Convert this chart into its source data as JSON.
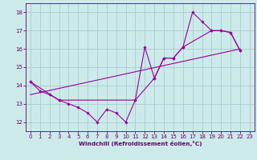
{
  "main_x": [
    0,
    1,
    2,
    3,
    4,
    5,
    6,
    7,
    8,
    9,
    10,
    11,
    12,
    13,
    14,
    15,
    16,
    17,
    18,
    19,
    20,
    21,
    22
  ],
  "main_y": [
    14.2,
    13.7,
    13.5,
    13.2,
    13.0,
    12.8,
    12.5,
    12.0,
    12.7,
    12.5,
    12.0,
    13.2,
    16.1,
    14.4,
    15.5,
    15.5,
    16.1,
    18.0,
    17.5,
    17.0,
    17.0,
    16.9,
    15.9
  ],
  "env_x": [
    0,
    3,
    11,
    13,
    14,
    15,
    16,
    19,
    20,
    21,
    22
  ],
  "env_y": [
    14.2,
    13.2,
    13.2,
    14.4,
    15.5,
    15.5,
    16.1,
    17.0,
    17.0,
    16.9,
    15.9
  ],
  "trend_x": [
    0,
    22
  ],
  "trend_y": [
    13.5,
    16.0
  ],
  "line_color": "#990099",
  "bg_color": "#cceaea",
  "grid_color": "#aacccc",
  "xlabel": "Windchill (Refroidissement éolien,°C)",
  "xlabel_color": "#660066",
  "tick_color": "#660066",
  "xlim": [
    -0.5,
    23.5
  ],
  "ylim": [
    11.5,
    18.5
  ],
  "yticks": [
    12,
    13,
    14,
    15,
    16,
    17,
    18
  ],
  "xticks": [
    0,
    1,
    2,
    3,
    4,
    5,
    6,
    7,
    8,
    9,
    10,
    11,
    12,
    13,
    14,
    15,
    16,
    17,
    18,
    19,
    20,
    21,
    22,
    23
  ]
}
